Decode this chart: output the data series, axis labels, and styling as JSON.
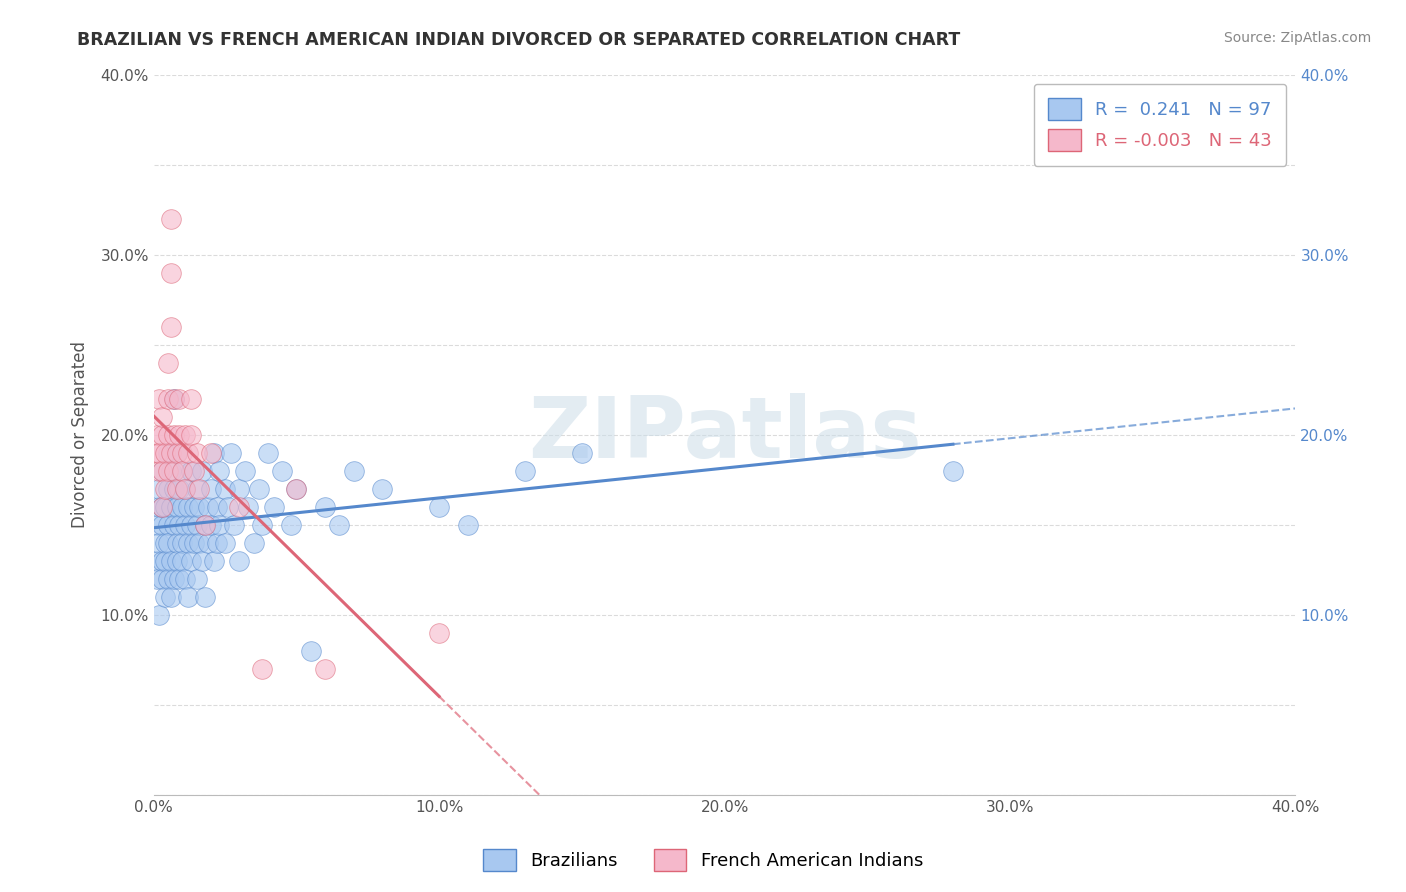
{
  "title": "BRAZILIAN VS FRENCH AMERICAN INDIAN DIVORCED OR SEPARATED CORRELATION CHART",
  "source_text": "Source: ZipAtlas.com",
  "ylabel": "Divorced or Separated",
  "xlabel": "",
  "xlim": [
    0.0,
    0.4
  ],
  "ylim": [
    0.0,
    0.4
  ],
  "legend_labels": [
    "Brazilians",
    "French American Indians"
  ],
  "r_brazilian": "0.241",
  "n_brazilian": "97",
  "r_french": "-0.003",
  "n_french": "43",
  "blue_color": "#A8C8F0",
  "pink_color": "#F5B8CB",
  "blue_line_color": "#5588CC",
  "pink_line_color": "#DD6677",
  "watermark_color": "#CCDDE8",
  "background_color": "#FFFFFF",
  "grid_color": "#CCCCCC",
  "title_color": "#333333",
  "blue_scatter": [
    [
      0.001,
      0.13
    ],
    [
      0.001,
      0.15
    ],
    [
      0.001,
      0.12
    ],
    [
      0.002,
      0.14
    ],
    [
      0.002,
      0.16
    ],
    [
      0.002,
      0.1
    ],
    [
      0.002,
      0.17
    ],
    [
      0.003,
      0.13
    ],
    [
      0.003,
      0.15
    ],
    [
      0.003,
      0.12
    ],
    [
      0.003,
      0.16
    ],
    [
      0.003,
      0.18
    ],
    [
      0.004,
      0.14
    ],
    [
      0.004,
      0.16
    ],
    [
      0.004,
      0.11
    ],
    [
      0.004,
      0.13
    ],
    [
      0.005,
      0.15
    ],
    [
      0.005,
      0.17
    ],
    [
      0.005,
      0.12
    ],
    [
      0.005,
      0.14
    ],
    [
      0.005,
      0.19
    ],
    [
      0.006,
      0.16
    ],
    [
      0.006,
      0.13
    ],
    [
      0.006,
      0.18
    ],
    [
      0.006,
      0.11
    ],
    [
      0.007,
      0.15
    ],
    [
      0.007,
      0.22
    ],
    [
      0.007,
      0.12
    ],
    [
      0.007,
      0.17
    ],
    [
      0.008,
      0.14
    ],
    [
      0.008,
      0.16
    ],
    [
      0.008,
      0.13
    ],
    [
      0.008,
      0.19
    ],
    [
      0.009,
      0.15
    ],
    [
      0.009,
      0.12
    ],
    [
      0.009,
      0.17
    ],
    [
      0.01,
      0.14
    ],
    [
      0.01,
      0.16
    ],
    [
      0.01,
      0.13
    ],
    [
      0.01,
      0.18
    ],
    [
      0.011,
      0.15
    ],
    [
      0.011,
      0.12
    ],
    [
      0.011,
      0.17
    ],
    [
      0.012,
      0.14
    ],
    [
      0.012,
      0.16
    ],
    [
      0.012,
      0.11
    ],
    [
      0.013,
      0.15
    ],
    [
      0.013,
      0.13
    ],
    [
      0.013,
      0.18
    ],
    [
      0.014,
      0.16
    ],
    [
      0.014,
      0.14
    ],
    [
      0.015,
      0.12
    ],
    [
      0.015,
      0.17
    ],
    [
      0.015,
      0.15
    ],
    [
      0.016,
      0.14
    ],
    [
      0.016,
      0.16
    ],
    [
      0.017,
      0.13
    ],
    [
      0.017,
      0.18
    ],
    [
      0.018,
      0.15
    ],
    [
      0.018,
      0.11
    ],
    [
      0.019,
      0.16
    ],
    [
      0.019,
      0.14
    ],
    [
      0.02,
      0.17
    ],
    [
      0.02,
      0.15
    ],
    [
      0.021,
      0.13
    ],
    [
      0.021,
      0.19
    ],
    [
      0.022,
      0.16
    ],
    [
      0.022,
      0.14
    ],
    [
      0.023,
      0.18
    ],
    [
      0.023,
      0.15
    ],
    [
      0.025,
      0.17
    ],
    [
      0.025,
      0.14
    ],
    [
      0.026,
      0.16
    ],
    [
      0.027,
      0.19
    ],
    [
      0.028,
      0.15
    ],
    [
      0.03,
      0.17
    ],
    [
      0.03,
      0.13
    ],
    [
      0.032,
      0.18
    ],
    [
      0.033,
      0.16
    ],
    [
      0.035,
      0.14
    ],
    [
      0.037,
      0.17
    ],
    [
      0.038,
      0.15
    ],
    [
      0.04,
      0.19
    ],
    [
      0.042,
      0.16
    ],
    [
      0.045,
      0.18
    ],
    [
      0.048,
      0.15
    ],
    [
      0.05,
      0.17
    ],
    [
      0.055,
      0.08
    ],
    [
      0.06,
      0.16
    ],
    [
      0.065,
      0.15
    ],
    [
      0.07,
      0.18
    ],
    [
      0.08,
      0.17
    ],
    [
      0.1,
      0.16
    ],
    [
      0.11,
      0.15
    ],
    [
      0.13,
      0.18
    ],
    [
      0.15,
      0.19
    ],
    [
      0.28,
      0.18
    ]
  ],
  "pink_scatter": [
    [
      0.001,
      0.19
    ],
    [
      0.001,
      0.2
    ],
    [
      0.002,
      0.18
    ],
    [
      0.002,
      0.22
    ],
    [
      0.002,
      0.19
    ],
    [
      0.003,
      0.2
    ],
    [
      0.003,
      0.18
    ],
    [
      0.003,
      0.16
    ],
    [
      0.003,
      0.21
    ],
    [
      0.004,
      0.19
    ],
    [
      0.004,
      0.17
    ],
    [
      0.005,
      0.2
    ],
    [
      0.005,
      0.18
    ],
    [
      0.005,
      0.24
    ],
    [
      0.005,
      0.22
    ],
    [
      0.006,
      0.19
    ],
    [
      0.006,
      0.32
    ],
    [
      0.006,
      0.29
    ],
    [
      0.006,
      0.26
    ],
    [
      0.007,
      0.2
    ],
    [
      0.007,
      0.18
    ],
    [
      0.007,
      0.22
    ],
    [
      0.008,
      0.19
    ],
    [
      0.008,
      0.17
    ],
    [
      0.009,
      0.2
    ],
    [
      0.009,
      0.22
    ],
    [
      0.01,
      0.19
    ],
    [
      0.01,
      0.18
    ],
    [
      0.011,
      0.2
    ],
    [
      0.011,
      0.17
    ],
    [
      0.012,
      0.19
    ],
    [
      0.013,
      0.22
    ],
    [
      0.013,
      0.2
    ],
    [
      0.014,
      0.18
    ],
    [
      0.015,
      0.19
    ],
    [
      0.016,
      0.17
    ],
    [
      0.018,
      0.15
    ],
    [
      0.02,
      0.19
    ],
    [
      0.03,
      0.16
    ],
    [
      0.038,
      0.07
    ],
    [
      0.05,
      0.17
    ],
    [
      0.06,
      0.07
    ],
    [
      0.1,
      0.09
    ]
  ]
}
